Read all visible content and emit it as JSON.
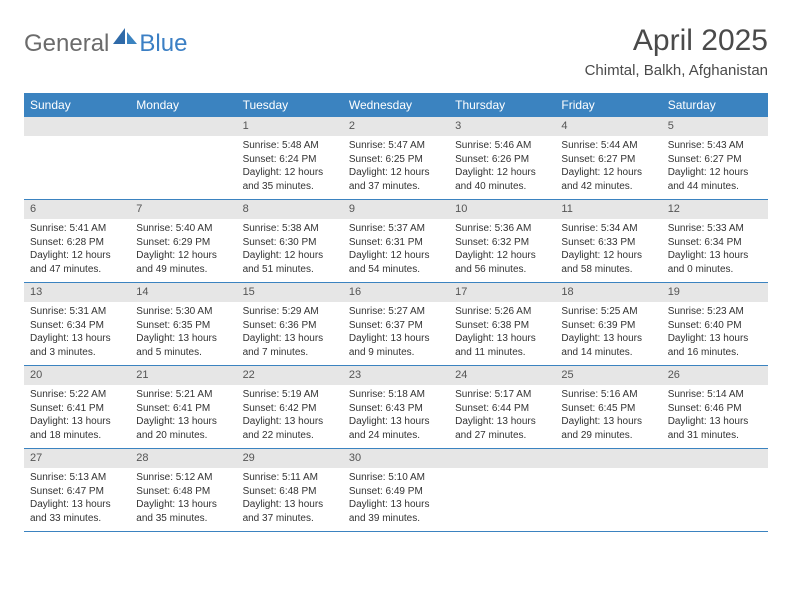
{
  "logo": {
    "text1": "General",
    "text2": "Blue"
  },
  "title": "April 2025",
  "location": "Chimtal, Balkh, Afghanistan",
  "colors": {
    "header_bg": "#3b83c0",
    "header_text": "#ffffff",
    "daynum_bg": "#e6e6e6",
    "week_divider": "#3b83c0",
    "page_bg": "#ffffff"
  },
  "day_headers": [
    "Sunday",
    "Monday",
    "Tuesday",
    "Wednesday",
    "Thursday",
    "Friday",
    "Saturday"
  ],
  "weeks": [
    [
      {
        "n": "",
        "sr": "",
        "ss": "",
        "dl": ""
      },
      {
        "n": "",
        "sr": "",
        "ss": "",
        "dl": ""
      },
      {
        "n": "1",
        "sr": "Sunrise: 5:48 AM",
        "ss": "Sunset: 6:24 PM",
        "dl": "Daylight: 12 hours and 35 minutes."
      },
      {
        "n": "2",
        "sr": "Sunrise: 5:47 AM",
        "ss": "Sunset: 6:25 PM",
        "dl": "Daylight: 12 hours and 37 minutes."
      },
      {
        "n": "3",
        "sr": "Sunrise: 5:46 AM",
        "ss": "Sunset: 6:26 PM",
        "dl": "Daylight: 12 hours and 40 minutes."
      },
      {
        "n": "4",
        "sr": "Sunrise: 5:44 AM",
        "ss": "Sunset: 6:27 PM",
        "dl": "Daylight: 12 hours and 42 minutes."
      },
      {
        "n": "5",
        "sr": "Sunrise: 5:43 AM",
        "ss": "Sunset: 6:27 PM",
        "dl": "Daylight: 12 hours and 44 minutes."
      }
    ],
    [
      {
        "n": "6",
        "sr": "Sunrise: 5:41 AM",
        "ss": "Sunset: 6:28 PM",
        "dl": "Daylight: 12 hours and 47 minutes."
      },
      {
        "n": "7",
        "sr": "Sunrise: 5:40 AM",
        "ss": "Sunset: 6:29 PM",
        "dl": "Daylight: 12 hours and 49 minutes."
      },
      {
        "n": "8",
        "sr": "Sunrise: 5:38 AM",
        "ss": "Sunset: 6:30 PM",
        "dl": "Daylight: 12 hours and 51 minutes."
      },
      {
        "n": "9",
        "sr": "Sunrise: 5:37 AM",
        "ss": "Sunset: 6:31 PM",
        "dl": "Daylight: 12 hours and 54 minutes."
      },
      {
        "n": "10",
        "sr": "Sunrise: 5:36 AM",
        "ss": "Sunset: 6:32 PM",
        "dl": "Daylight: 12 hours and 56 minutes."
      },
      {
        "n": "11",
        "sr": "Sunrise: 5:34 AM",
        "ss": "Sunset: 6:33 PM",
        "dl": "Daylight: 12 hours and 58 minutes."
      },
      {
        "n": "12",
        "sr": "Sunrise: 5:33 AM",
        "ss": "Sunset: 6:34 PM",
        "dl": "Daylight: 13 hours and 0 minutes."
      }
    ],
    [
      {
        "n": "13",
        "sr": "Sunrise: 5:31 AM",
        "ss": "Sunset: 6:34 PM",
        "dl": "Daylight: 13 hours and 3 minutes."
      },
      {
        "n": "14",
        "sr": "Sunrise: 5:30 AM",
        "ss": "Sunset: 6:35 PM",
        "dl": "Daylight: 13 hours and 5 minutes."
      },
      {
        "n": "15",
        "sr": "Sunrise: 5:29 AM",
        "ss": "Sunset: 6:36 PM",
        "dl": "Daylight: 13 hours and 7 minutes."
      },
      {
        "n": "16",
        "sr": "Sunrise: 5:27 AM",
        "ss": "Sunset: 6:37 PM",
        "dl": "Daylight: 13 hours and 9 minutes."
      },
      {
        "n": "17",
        "sr": "Sunrise: 5:26 AM",
        "ss": "Sunset: 6:38 PM",
        "dl": "Daylight: 13 hours and 11 minutes."
      },
      {
        "n": "18",
        "sr": "Sunrise: 5:25 AM",
        "ss": "Sunset: 6:39 PM",
        "dl": "Daylight: 13 hours and 14 minutes."
      },
      {
        "n": "19",
        "sr": "Sunrise: 5:23 AM",
        "ss": "Sunset: 6:40 PM",
        "dl": "Daylight: 13 hours and 16 minutes."
      }
    ],
    [
      {
        "n": "20",
        "sr": "Sunrise: 5:22 AM",
        "ss": "Sunset: 6:41 PM",
        "dl": "Daylight: 13 hours and 18 minutes."
      },
      {
        "n": "21",
        "sr": "Sunrise: 5:21 AM",
        "ss": "Sunset: 6:41 PM",
        "dl": "Daylight: 13 hours and 20 minutes."
      },
      {
        "n": "22",
        "sr": "Sunrise: 5:19 AM",
        "ss": "Sunset: 6:42 PM",
        "dl": "Daylight: 13 hours and 22 minutes."
      },
      {
        "n": "23",
        "sr": "Sunrise: 5:18 AM",
        "ss": "Sunset: 6:43 PM",
        "dl": "Daylight: 13 hours and 24 minutes."
      },
      {
        "n": "24",
        "sr": "Sunrise: 5:17 AM",
        "ss": "Sunset: 6:44 PM",
        "dl": "Daylight: 13 hours and 27 minutes."
      },
      {
        "n": "25",
        "sr": "Sunrise: 5:16 AM",
        "ss": "Sunset: 6:45 PM",
        "dl": "Daylight: 13 hours and 29 minutes."
      },
      {
        "n": "26",
        "sr": "Sunrise: 5:14 AM",
        "ss": "Sunset: 6:46 PM",
        "dl": "Daylight: 13 hours and 31 minutes."
      }
    ],
    [
      {
        "n": "27",
        "sr": "Sunrise: 5:13 AM",
        "ss": "Sunset: 6:47 PM",
        "dl": "Daylight: 13 hours and 33 minutes."
      },
      {
        "n": "28",
        "sr": "Sunrise: 5:12 AM",
        "ss": "Sunset: 6:48 PM",
        "dl": "Daylight: 13 hours and 35 minutes."
      },
      {
        "n": "29",
        "sr": "Sunrise: 5:11 AM",
        "ss": "Sunset: 6:48 PM",
        "dl": "Daylight: 13 hours and 37 minutes."
      },
      {
        "n": "30",
        "sr": "Sunrise: 5:10 AM",
        "ss": "Sunset: 6:49 PM",
        "dl": "Daylight: 13 hours and 39 minutes."
      },
      {
        "n": "",
        "sr": "",
        "ss": "",
        "dl": ""
      },
      {
        "n": "",
        "sr": "",
        "ss": "",
        "dl": ""
      },
      {
        "n": "",
        "sr": "",
        "ss": "",
        "dl": ""
      }
    ]
  ]
}
